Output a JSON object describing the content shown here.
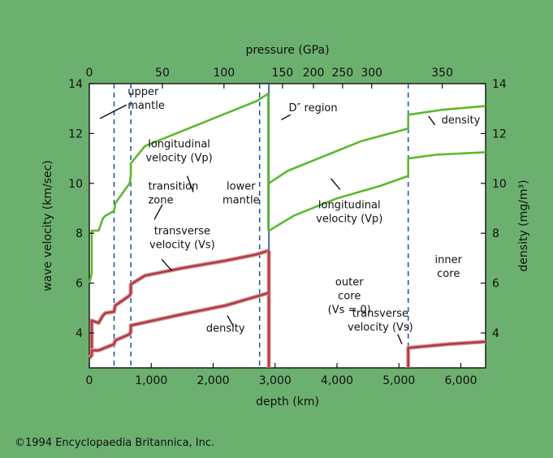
{
  "credit": "©1994 Encyclopaedia Britannica, Inc.",
  "colors": {
    "background": "#6cb06f",
    "plot_background": "#ffffff",
    "velocity": "#5cb82e",
    "density": "#b0356b",
    "density_halo": "#d7a36f",
    "boundary": "#1f4f9a"
  },
  "chart_data": {
    "type": "line",
    "title": "",
    "xlabel": "depth (km)",
    "x2label": "pressure (GPa)",
    "ylabel": "wave velocity (km/sec)",
    "y2label": "density (mg/m³)",
    "xlim": [
      0,
      6400
    ],
    "ylim": [
      2.6,
      14
    ],
    "y2lim": [
      2.6,
      14
    ],
    "grid": false,
    "legend": "none",
    "x_ticks": [
      {
        "value": 0,
        "label": "0"
      },
      {
        "value": 1000,
        "label": "1,000"
      },
      {
        "value": 2000,
        "label": "2,000"
      },
      {
        "value": 3000,
        "label": "3,000"
      },
      {
        "value": 4000,
        "label": "4,000"
      },
      {
        "value": 5000,
        "label": "5,000"
      },
      {
        "value": 6000,
        "label": "6,000"
      }
    ],
    "y_ticks": [
      {
        "value": 4,
        "label": "4"
      },
      {
        "value": 6,
        "label": "6"
      },
      {
        "value": 8,
        "label": "8"
      },
      {
        "value": 10,
        "label": "10"
      },
      {
        "value": 12,
        "label": "12"
      },
      {
        "value": 14,
        "label": "14"
      }
    ],
    "pressure_ticks": [
      {
        "depth": 0,
        "label": "0"
      },
      {
        "depth": 1180,
        "label": "50"
      },
      {
        "depth": 2175,
        "label": "100"
      },
      {
        "depth": 3120,
        "label": "150"
      },
      {
        "depth": 3620,
        "label": "200"
      },
      {
        "depth": 4090,
        "label": "250"
      },
      {
        "depth": 4560,
        "label": "300"
      },
      {
        "depth": 5700,
        "label": "350"
      }
    ],
    "dashed_boundaries": [
      400,
      670,
      2750,
      5150
    ],
    "solid_boundaries": [
      2900
    ],
    "series": [
      {
        "role": "velocity",
        "segments": [
          {
            "x": [
              0,
              40,
              40,
              150,
              220,
              260,
              400,
              420,
              650,
              670,
              670,
              900,
              1500,
              2200,
              2700,
              2890
            ],
            "y": [
              6.0,
              6.4,
              8.1,
              8.1,
              8.6,
              8.7,
              8.9,
              9.2,
              10.0,
              10.3,
              10.8,
              11.5,
              12.1,
              12.8,
              13.3,
              13.6
            ]
          },
          {
            "x": [
              2890,
              2890
            ],
            "y": [
              13.6,
              8.1
            ]
          },
          {
            "x": [
              2900,
              3300,
              4000,
              4700,
              5150,
              5150,
              5600,
              6400
            ],
            "y": [
              8.1,
              8.7,
              9.4,
              9.9,
              10.3,
              11.0,
              11.15,
              11.25
            ]
          }
        ]
      },
      {
        "role": "velocity",
        "segments": [
          {
            "x": [
              2900,
              3200,
              3800,
              4400,
              5150,
              5150,
              5700,
              6400
            ],
            "y": [
              10.0,
              10.5,
              11.1,
              11.7,
              12.2,
              12.75,
              12.95,
              13.1
            ]
          }
        ]
      },
      {
        "role": "density",
        "segments": [
          {
            "x": [
              0,
              40,
              40,
              150,
              220,
              260,
              400,
              420,
              650,
              670,
              670,
              900,
              1500,
              2200,
              2700,
              2890
            ],
            "y": [
              3.0,
              3.1,
              4.5,
              4.4,
              4.7,
              4.8,
              4.85,
              5.1,
              5.5,
              5.6,
              5.95,
              6.3,
              6.6,
              6.9,
              7.15,
              7.3
            ]
          },
          {
            "x": [
              2900,
              2900
            ],
            "y": [
              7.3,
              2.6
            ]
          },
          {
            "x": [
              5150,
              5150,
              5800,
              6400
            ],
            "y": [
              2.6,
              3.4,
              3.55,
              3.65
            ]
          }
        ]
      },
      {
        "role": "density",
        "segments": [
          {
            "x": [
              0,
              40,
              40,
              150,
              400,
              420,
              650,
              670,
              670,
              1500,
              2200,
              2890
            ],
            "y": [
              3.0,
              3.1,
              3.3,
              3.3,
              3.55,
              3.7,
              3.95,
              4.05,
              4.3,
              4.75,
              5.1,
              5.6
            ]
          }
        ]
      }
    ],
    "annotations": [
      {
        "lines": [
          "upper",
          "mantle"
        ],
        "x": 620,
        "y": 13.55,
        "anchor": "start"
      },
      {
        "lines": [
          "longitudinal",
          "velocity (Vp)"
        ],
        "x": 1450,
        "y": 11.45,
        "anchor": "middle"
      },
      {
        "lines": [
          "transition",
          "zone"
        ],
        "x": 950,
        "y": 9.75,
        "anchor": "start"
      },
      {
        "lines": [
          "lower",
          "mantle"
        ],
        "x": 2450,
        "y": 9.75,
        "anchor": "middle"
      },
      {
        "lines": [
          "transverse",
          "velocity (Vs)"
        ],
        "x": 1500,
        "y": 7.95,
        "anchor": "middle"
      },
      {
        "lines": [
          "density"
        ],
        "x": 2200,
        "y": 4.05,
        "anchor": "middle"
      },
      {
        "lines": [
          "D″ region"
        ],
        "x": 3220,
        "y": 12.9,
        "anchor": "start"
      },
      {
        "lines": [
          "density"
        ],
        "x": 6000,
        "y": 12.4,
        "anchor": "middle"
      },
      {
        "lines": [
          "longitudinal",
          "velocity (Vp)"
        ],
        "x": 4200,
        "y": 9.0,
        "anchor": "middle"
      },
      {
        "lines": [
          "outer",
          "core",
          "(Vs = 0)"
        ],
        "x": 4200,
        "y": 5.9,
        "anchor": "middle"
      },
      {
        "lines": [
          "inner",
          "core"
        ],
        "x": 5800,
        "y": 6.8,
        "anchor": "middle"
      },
      {
        "lines": [
          "transverse",
          "velocity (Vs)"
        ],
        "x": 4700,
        "y": 4.65,
        "anchor": "middle"
      }
    ],
    "leaders": [
      {
        "x1": 170,
        "y1": 12.6,
        "x2": 600,
        "y2": 13.15
      },
      {
        "x1": 1580,
        "y1": 10.3,
        "x2": 1680,
        "y2": 9.65
      },
      {
        "x1": 2230,
        "y1": 4.7,
        "x2": 2330,
        "y2": 4.25
      },
      {
        "x1": 1050,
        "y1": 8.55,
        "x2": 1180,
        "y2": 9.15
      },
      {
        "x1": 1170,
        "y1": 6.95,
        "x2": 1330,
        "y2": 6.5
      },
      {
        "x1": 3100,
        "y1": 12.55,
        "x2": 3250,
        "y2": 12.75
      },
      {
        "x1": 3900,
        "y1": 10.2,
        "x2": 4050,
        "y2": 9.75
      },
      {
        "x1": 5480,
        "y1": 12.7,
        "x2": 5580,
        "y2": 12.35
      },
      {
        "x1": 4980,
        "y1": 3.95,
        "x2": 5050,
        "y2": 3.55
      }
    ]
  }
}
